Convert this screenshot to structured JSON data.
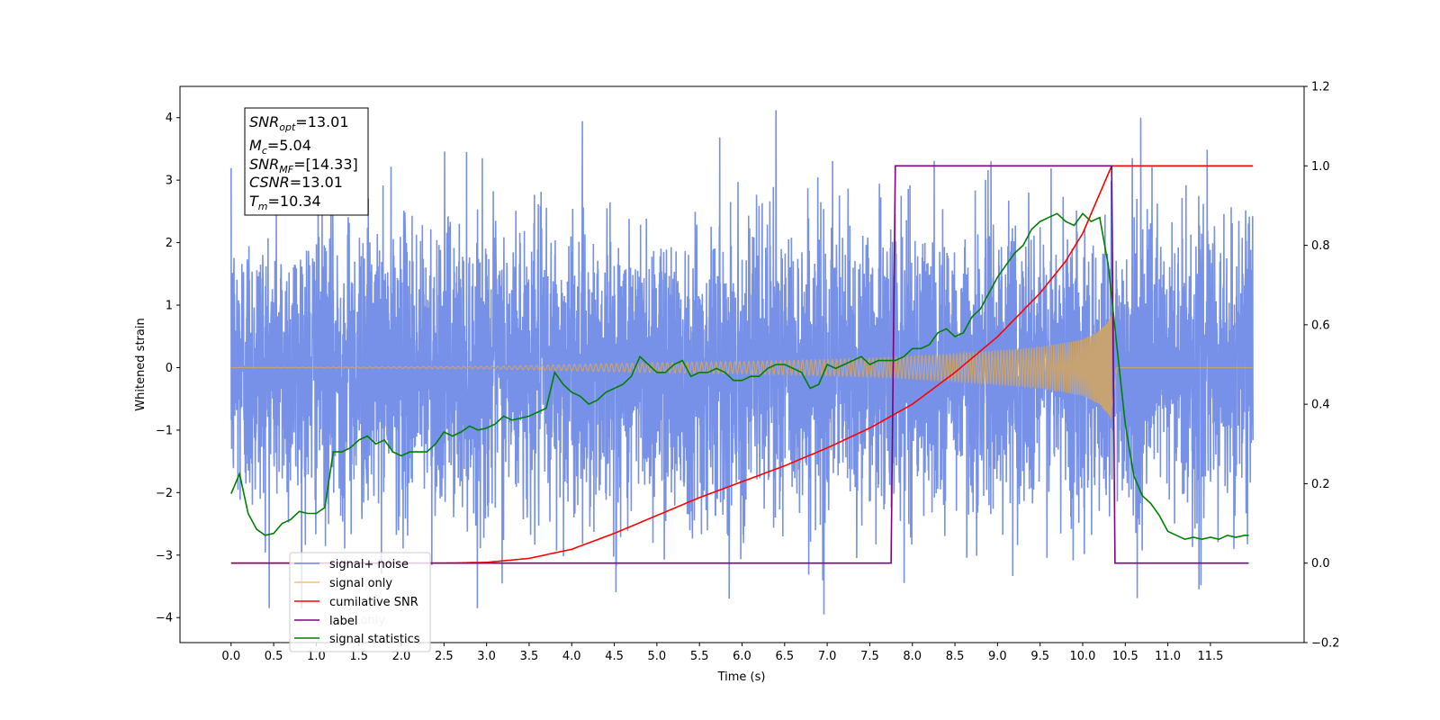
{
  "chart_data": {
    "type": "line",
    "xlabel": "Time (s)",
    "ylabel": "Whitened strain",
    "xlim": [
      -0.6,
      12.6
    ],
    "ylim": [
      -4.4,
      4.5
    ],
    "y2lim": [
      -0.2,
      1.2
    ],
    "x_ticks": [
      0.0,
      0.5,
      1.0,
      1.5,
      2.0,
      2.5,
      3.0,
      3.5,
      4.0,
      4.5,
      5.0,
      5.5,
      6.0,
      6.5,
      7.0,
      7.5,
      8.0,
      8.5,
      9.0,
      9.5,
      10.0,
      10.5,
      11.0,
      11.5
    ],
    "x_tick_labels": [
      "0.0",
      "0.5",
      "1.0",
      "1.5",
      "2.0",
      "2.5",
      "3.0",
      "3.5",
      "4.0",
      "4.5",
      "5.0",
      "5.5",
      "6.0",
      "6.5",
      "7.0",
      "7.5",
      "8.0",
      "8.5",
      "9.0",
      "9.5",
      "10.0",
      "10.5",
      "11.0",
      "11.5"
    ],
    "y_ticks": [
      -4,
      -3,
      -2,
      -1,
      0,
      1,
      2,
      3,
      4
    ],
    "y_tick_labels": [
      "−4",
      "−3",
      "−2",
      "−1",
      "0",
      "1",
      "2",
      "3",
      "4"
    ],
    "y2_ticks": [
      -0.2,
      0.0,
      0.2,
      0.4,
      0.6,
      0.8,
      1.0,
      1.2
    ],
    "y2_tick_labels": [
      "−0.2",
      "0.0",
      "0.2",
      "0.4",
      "0.6",
      "0.8",
      "1.0",
      "1.2"
    ],
    "grid": false,
    "legend_placement": "lower-left",
    "legend": [
      {
        "label": "signal+ noise",
        "color": "#6F8BE6"
      },
      {
        "label": "signal only",
        "color": "#FDBF6F"
      },
      {
        "label": "cumilative SNR",
        "color": "#FF0000"
      },
      {
        "label": "label",
        "color": "#800080"
      },
      {
        "label": "signal statistics",
        "color": "#008000"
      }
    ],
    "hidden_legend_text": "label only",
    "annotation": {
      "lines": [
        {
          "base": "SNR",
          "sub": "opt",
          "value": "=13.01"
        },
        {
          "base": "M",
          "sub": "c",
          "value": "=5.04"
        },
        {
          "base": "SNR",
          "sub": "MF",
          "value": "=[14.33]"
        },
        {
          "base": "CSNR",
          "sub": "",
          "value": "=13.01"
        },
        {
          "base": "T",
          "sub": "m",
          "value": "=10.34"
        }
      ]
    },
    "series": [
      {
        "name": "signal+ noise",
        "axis": "left",
        "color": "#6F8BE6",
        "x_range": [
          0.0,
          12.0
        ],
        "noise_std": 1.0,
        "y_extremes": {
          "max": 4.12,
          "min": -3.95
        }
      },
      {
        "name": "signal only",
        "axis": "left",
        "color": "#C7A373",
        "envelope": {
          "x": [
            0.0,
            3.0,
            4.0,
            5.0,
            6.0,
            7.0,
            7.5,
            8.0,
            8.5,
            9.0,
            9.5,
            10.0,
            10.2,
            10.3,
            10.34,
            10.4,
            12.0
          ],
          "amp": [
            0.0,
            0.02,
            0.05,
            0.08,
            0.1,
            0.13,
            0.15,
            0.18,
            0.22,
            0.27,
            0.33,
            0.45,
            0.6,
            0.75,
            0.85,
            0.02,
            0.0
          ]
        }
      },
      {
        "name": "cumilative SNR",
        "axis": "right",
        "color": "#FF0000",
        "x": [
          0.0,
          2.5,
          3.0,
          3.5,
          4.0,
          4.5,
          5.0,
          5.5,
          6.0,
          6.5,
          7.0,
          7.5,
          8.0,
          8.5,
          9.0,
          9.5,
          9.8,
          10.0,
          10.2,
          10.34,
          12.0
        ],
        "values": [
          0.0,
          0.0,
          0.002,
          0.012,
          0.035,
          0.075,
          0.12,
          0.165,
          0.205,
          0.245,
          0.29,
          0.34,
          0.4,
          0.48,
          0.57,
          0.68,
          0.76,
          0.83,
          0.93,
          1.0,
          1.0
        ]
      },
      {
        "name": "label",
        "axis": "right",
        "color": "#800080",
        "x": [
          0.0,
          7.75,
          7.8,
          10.34,
          10.38,
          11.95
        ],
        "values": [
          0.0,
          0.0,
          1.0,
          1.0,
          0.0,
          0.0
        ]
      },
      {
        "name": "signal statistics",
        "axis": "right",
        "color": "#008000",
        "x": [
          0.0,
          0.1,
          0.2,
          0.3,
          0.4,
          0.5,
          0.6,
          0.7,
          0.8,
          0.9,
          1.0,
          1.1,
          1.2,
          1.3,
          1.4,
          1.5,
          1.6,
          1.7,
          1.8,
          1.9,
          2.0,
          2.1,
          2.2,
          2.3,
          2.4,
          2.5,
          2.6,
          2.7,
          2.8,
          2.9,
          3.0,
          3.1,
          3.2,
          3.3,
          3.4,
          3.5,
          3.6,
          3.7,
          3.8,
          3.9,
          4.0,
          4.1,
          4.2,
          4.3,
          4.4,
          4.5,
          4.6,
          4.7,
          4.8,
          4.9,
          5.0,
          5.1,
          5.2,
          5.3,
          5.4,
          5.5,
          5.6,
          5.7,
          5.8,
          5.9,
          6.0,
          6.1,
          6.2,
          6.3,
          6.4,
          6.5,
          6.6,
          6.7,
          6.8,
          6.9,
          7.0,
          7.1,
          7.2,
          7.3,
          7.4,
          7.5,
          7.6,
          7.7,
          7.8,
          7.9,
          8.0,
          8.1,
          8.2,
          8.3,
          8.4,
          8.5,
          8.6,
          8.7,
          8.8,
          8.9,
          9.0,
          9.1,
          9.2,
          9.3,
          9.4,
          9.5,
          9.6,
          9.7,
          9.8,
          9.9,
          10.0,
          10.1,
          10.2,
          10.3,
          10.4,
          10.5,
          10.6,
          10.7,
          10.8,
          10.9,
          11.0,
          11.1,
          11.2,
          11.3,
          11.4,
          11.5,
          11.6,
          11.7,
          11.8,
          11.9,
          11.95
        ],
        "values": [
          0.175,
          0.225,
          0.125,
          0.085,
          0.07,
          0.075,
          0.1,
          0.11,
          0.13,
          0.125,
          0.125,
          0.14,
          0.28,
          0.28,
          0.29,
          0.31,
          0.32,
          0.3,
          0.31,
          0.28,
          0.27,
          0.28,
          0.28,
          0.28,
          0.3,
          0.33,
          0.32,
          0.33,
          0.345,
          0.335,
          0.34,
          0.35,
          0.37,
          0.36,
          0.365,
          0.37,
          0.38,
          0.39,
          0.48,
          0.45,
          0.43,
          0.42,
          0.4,
          0.41,
          0.43,
          0.44,
          0.45,
          0.47,
          0.52,
          0.5,
          0.48,
          0.48,
          0.5,
          0.51,
          0.47,
          0.48,
          0.48,
          0.49,
          0.48,
          0.46,
          0.46,
          0.47,
          0.47,
          0.49,
          0.5,
          0.5,
          0.49,
          0.48,
          0.44,
          0.45,
          0.5,
          0.49,
          0.5,
          0.51,
          0.52,
          0.5,
          0.51,
          0.51,
          0.51,
          0.52,
          0.54,
          0.54,
          0.55,
          0.58,
          0.59,
          0.57,
          0.58,
          0.62,
          0.64,
          0.68,
          0.72,
          0.75,
          0.78,
          0.8,
          0.84,
          0.86,
          0.87,
          0.88,
          0.86,
          0.85,
          0.88,
          0.86,
          0.87,
          0.75,
          0.55,
          0.35,
          0.22,
          0.17,
          0.15,
          0.12,
          0.08,
          0.07,
          0.06,
          0.065,
          0.06,
          0.065,
          0.06,
          0.07,
          0.065,
          0.07,
          0.07
        ]
      }
    ]
  }
}
